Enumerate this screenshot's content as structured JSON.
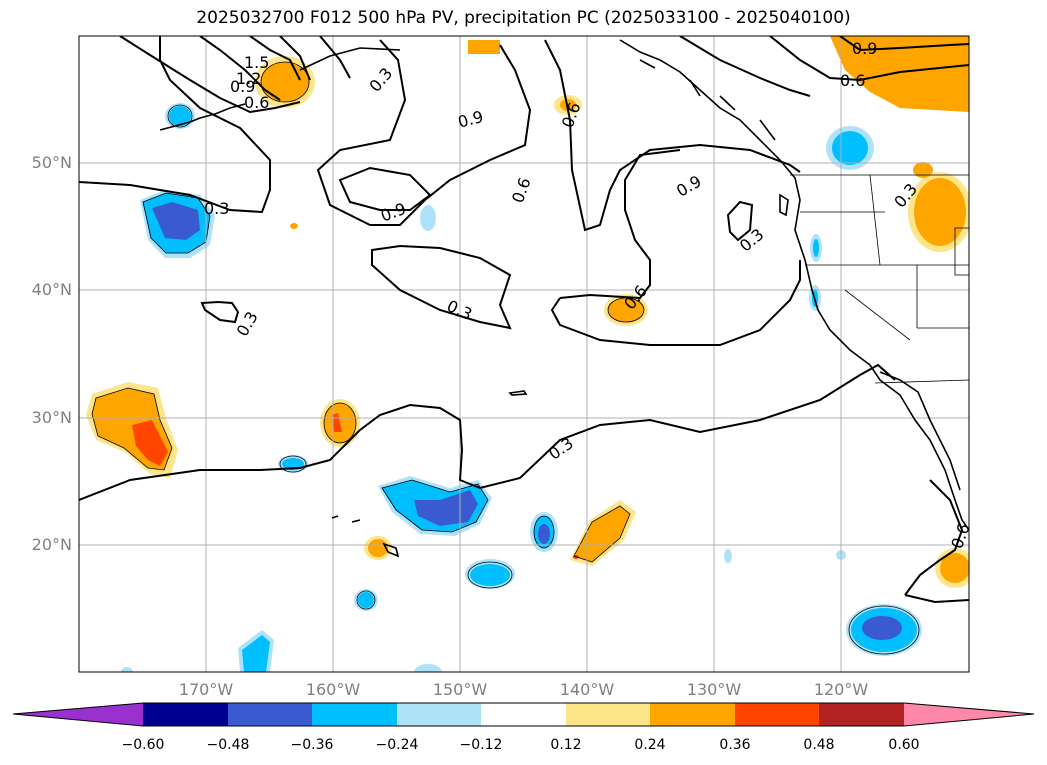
{
  "title": "2025032700 F012 500 hPa PV, precipitation PC (2025033100 - 2025040100)",
  "map": {
    "projection": "PlateCarree",
    "lon_range": [
      -180,
      -110
    ],
    "lat_range": [
      10,
      60
    ],
    "grid": true,
    "lon_ticks": [
      "170°W",
      "160°W",
      "150°W",
      "140°W",
      "130°W",
      "120°W"
    ],
    "lat_ticks": [
      "50°N",
      "40°N",
      "30°N",
      "20°N"
    ],
    "pv_contour_labels": [
      "1.5",
      "1.2",
      "0.9",
      "0.6",
      "0.3",
      "0.3",
      "0.9",
      "0.9",
      "0.6",
      "0.9",
      "0.6",
      "0.3",
      "0.6",
      "0.3",
      "0.3",
      "0.3",
      "0.9",
      "0.6",
      "0.3",
      "0.6"
    ]
  },
  "colorbar": {
    "extend": "both",
    "ticks": [
      "−0.60",
      "−0.48",
      "−0.36",
      "−0.24",
      "−0.12",
      "0.12",
      "0.24",
      "0.36",
      "0.48",
      "0.60"
    ],
    "colors": {
      "below_min": "#9b30d0",
      "b1": "#000090",
      "b2": "#3a5bd0",
      "b3": "#00bfff",
      "b4": "#aee2f8",
      "b5": "#ffffff",
      "b6": "#fde68a",
      "b7": "#ffa500",
      "b8": "#ff4500",
      "b9": "#b22222",
      "above_max": "#ff88aa"
    }
  }
}
